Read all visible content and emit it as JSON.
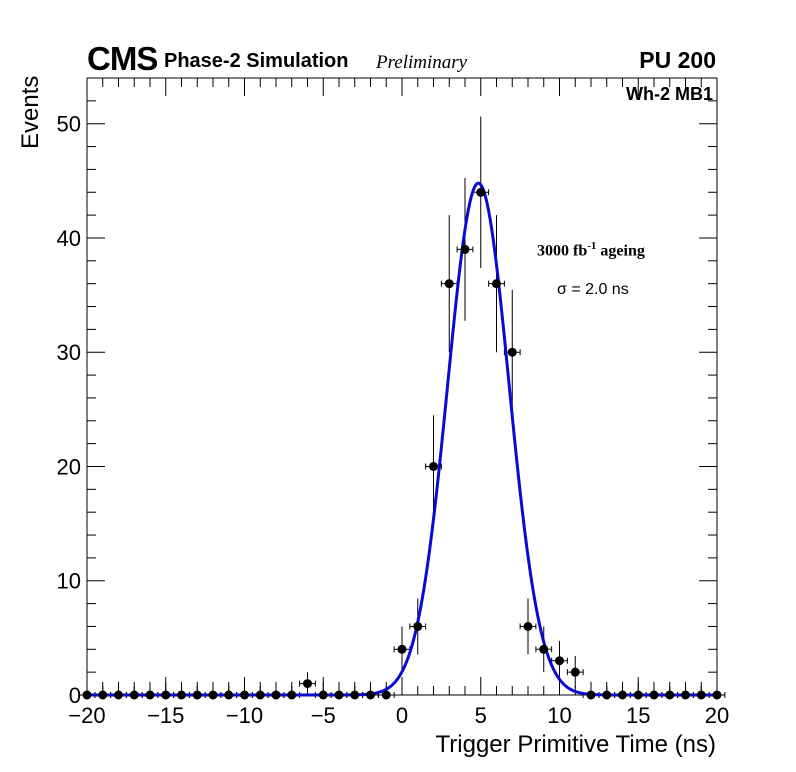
{
  "header": {
    "experiment": "CMS",
    "subtitle": "Phase-2 Simulation",
    "status": "Preliminary",
    "pileup": "PU 200",
    "station": "Wh-2 MB1"
  },
  "annotations": {
    "ageing_value": "3000 fb",
    "ageing_exp": "-1",
    "ageing_word": " ageing",
    "sigma_label": "σ = 2.0 ns"
  },
  "colors": {
    "fit": "#0a0ad6",
    "points": "#000000"
  },
  "chart_data": {
    "type": "scatter",
    "title": "",
    "xlabel": "Trigger Primitive Time (ns)",
    "ylabel": "Events",
    "xlim": [
      -20,
      20
    ],
    "ylim": [
      0,
      54
    ],
    "xticks": [
      -20,
      -15,
      -10,
      -5,
      0,
      5,
      10,
      15,
      20
    ],
    "xtick_labels": [
      "−20",
      "−15",
      "−10",
      "−5",
      "0",
      "5",
      "10",
      "15",
      "20"
    ],
    "yticks": [
      0,
      10,
      20,
      30,
      40,
      50
    ],
    "ytick_labels": [
      "0",
      "10",
      "20",
      "30",
      "40",
      "50"
    ],
    "bin_width": 1,
    "series": [
      {
        "name": "Simulation",
        "x": [
          -20,
          -19,
          -18,
          -17,
          -16,
          -15,
          -14,
          -13,
          -12,
          -11,
          -10,
          -9,
          -8,
          -7,
          -6,
          -5,
          -4,
          -3,
          -2,
          -1,
          0,
          1,
          2,
          3,
          4,
          5,
          6,
          7,
          8,
          9,
          10,
          11,
          12,
          13,
          14,
          15,
          16,
          17,
          18,
          19,
          20
        ],
        "y": [
          0,
          0,
          0,
          0,
          0,
          0,
          0,
          0,
          0,
          0,
          0,
          0,
          0,
          0,
          1,
          0,
          0,
          0,
          0,
          0,
          4,
          6,
          20,
          36,
          39,
          44,
          36,
          30,
          6,
          4,
          3,
          2,
          0,
          0,
          0,
          0,
          0,
          0,
          0,
          0,
          0
        ]
      }
    ],
    "fit": {
      "name": "Gaussian fit",
      "amplitude": 44.8,
      "mean": 4.85,
      "sigma": 1.95
    }
  }
}
